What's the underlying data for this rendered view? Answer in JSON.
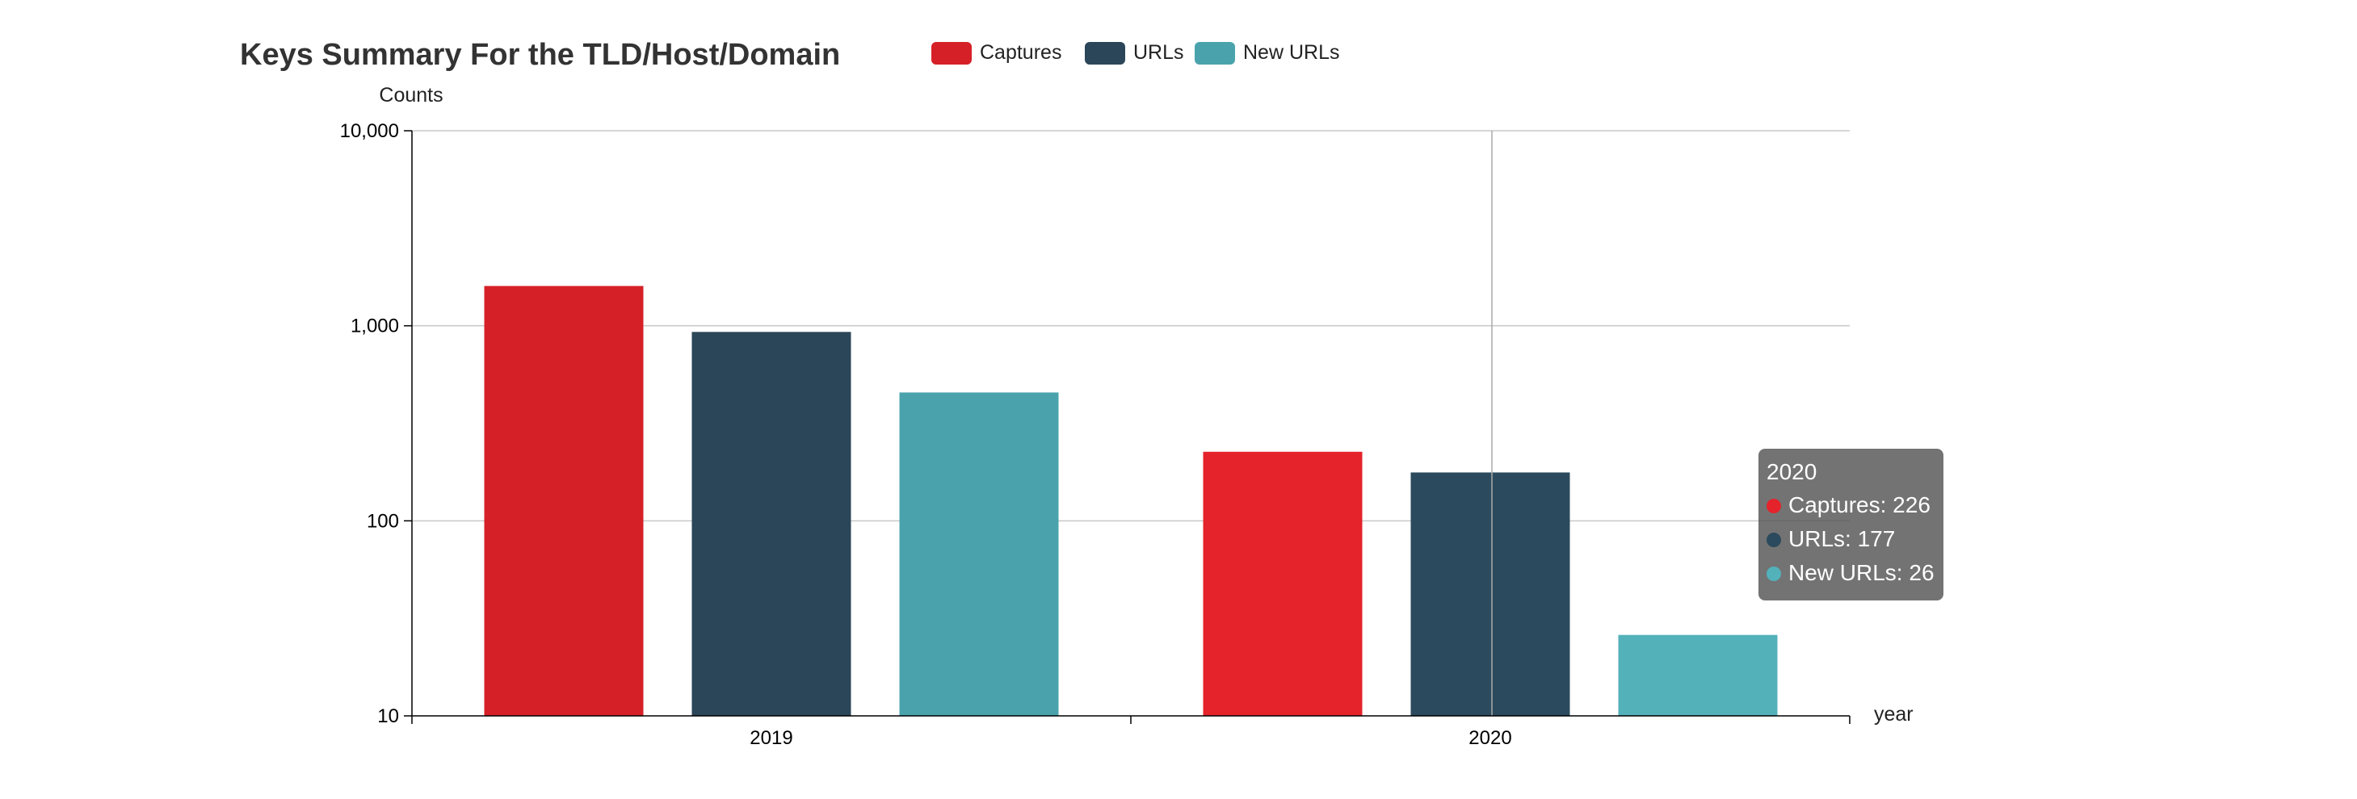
{
  "chart_data": {
    "type": "bar",
    "title": "Keys Summary For the TLD/Host/Domain",
    "xlabel": "year",
    "ylabel": "Counts",
    "yscale": "log",
    "ylim": [
      10,
      10000
    ],
    "yticks": [
      {
        "value": 10,
        "label": "10"
      },
      {
        "value": 100,
        "label": "100"
      },
      {
        "value": 1000,
        "label": "1,000"
      },
      {
        "value": 10000,
        "label": "10,000"
      }
    ],
    "grid": true,
    "legend_position": "top",
    "categories": [
      "2019",
      "2020"
    ],
    "series": [
      {
        "name": "Captures",
        "color": "#d62027",
        "values": [
          1600,
          226
        ]
      },
      {
        "name": "URLs",
        "color": "#2b4658",
        "values": [
          930,
          177
        ]
      },
      {
        "name": "New URLs",
        "color": "#4aa3ac",
        "values": [
          455,
          26
        ]
      }
    ],
    "highlight_colors": [
      "#e4232b",
      "#2b4a5d",
      "#53b1ba"
    ]
  },
  "tooltip": {
    "title": "2020",
    "rows": [
      {
        "text": "Captures: 226",
        "color": "#e4232b"
      },
      {
        "text": "URLs: 177",
        "color": "#2b4a5d"
      },
      {
        "text": "New URLs: 26",
        "color": "#53b1ba"
      }
    ]
  }
}
